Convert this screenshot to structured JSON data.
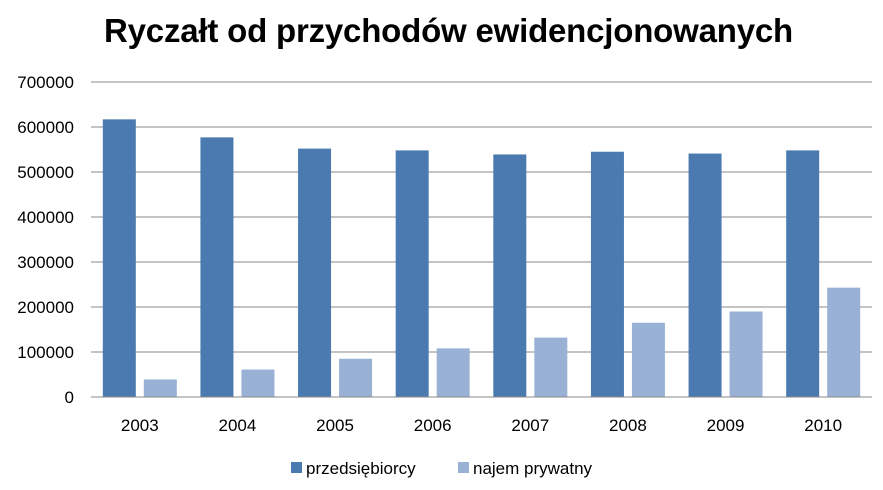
{
  "chart_data": {
    "type": "bar",
    "title": "Ryczałt od przychodów ewidencjonowanych",
    "xlabel": "",
    "ylabel": "",
    "categories": [
      "2003",
      "2004",
      "2005",
      "2006",
      "2007",
      "2008",
      "2009",
      "2010"
    ],
    "series": [
      {
        "name": "przedsiębiorcy",
        "color": "#4a7ab0",
        "values": [
          617000,
          577000,
          552000,
          548000,
          539000,
          545000,
          541000,
          548000
        ]
      },
      {
        "name": "najem prywatny",
        "color": "#9ab1d6",
        "values": [
          39000,
          61000,
          85000,
          108000,
          132000,
          165000,
          190000,
          243000
        ]
      }
    ],
    "ylim": [
      0,
      700000
    ],
    "yticks": [
      "0",
      "100000",
      "200000",
      "300000",
      "400000",
      "500000",
      "600000",
      "700000"
    ],
    "grid": true,
    "legend_position": "bottom"
  }
}
